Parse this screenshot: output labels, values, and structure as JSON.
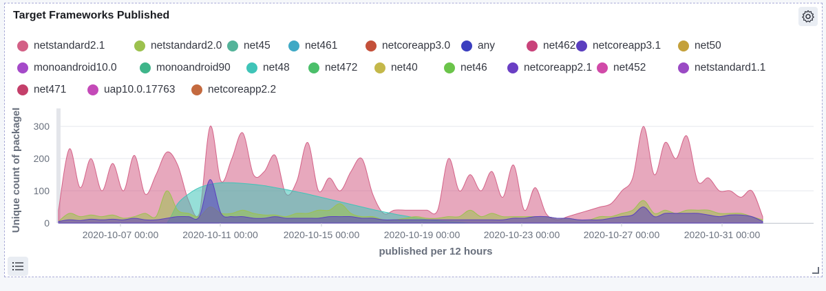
{
  "panel": {
    "title": "Target Frameworks Published"
  },
  "icons": {
    "settings": "gear-icon",
    "legend": "list-icon",
    "resize": "resize-handle-icon"
  },
  "legend": [
    {
      "name": "netstandard2.1",
      "color": "#d36086"
    },
    {
      "name": "netstandard2.0",
      "color": "#9cc14e"
    },
    {
      "name": "net45",
      "color": "#54b399"
    },
    {
      "name": "net461",
      "color": "#3fa9c5"
    },
    {
      "name": "netcoreapp3.0",
      "color": "#c4503a"
    },
    {
      "name": "any",
      "color": "#3b3fbf"
    },
    {
      "name": "net462",
      "color": "#c9437a"
    },
    {
      "name": "netcoreapp3.1",
      "color": "#5b3fbf"
    },
    {
      "name": "net50",
      "color": "#c4a03a"
    },
    {
      "name": "monoandroid10.0",
      "color": "#a54ac9"
    },
    {
      "name": "monoandroid90",
      "color": "#3fb58a"
    },
    {
      "name": "net48",
      "color": "#3fc4b8"
    },
    {
      "name": "net472",
      "color": "#4bbf6a"
    },
    {
      "name": "net40",
      "color": "#c4b84a"
    },
    {
      "name": "net46",
      "color": "#6bc44a"
    },
    {
      "name": "netcoreapp2.1",
      "color": "#6a3fc4"
    },
    {
      "name": "net452",
      "color": "#d14aa8"
    },
    {
      "name": "netstandard1.1",
      "color": "#9a4ac4"
    },
    {
      "name": "net471",
      "color": "#c43f6a"
    },
    {
      "name": "uap10.0.17763",
      "color": "#c44ab8"
    },
    {
      "name": "netcoreapp2.2",
      "color": "#c46a3f"
    }
  ],
  "chart_data": {
    "type": "area",
    "xlabel": "published per 12 hours",
    "ylabel": "Unique count of packageI",
    "ylim": [
      0,
      330
    ],
    "yticks": [
      0,
      100,
      200,
      300
    ],
    "xticks": [
      "2020-10-07 00:00",
      "2020-10-11 00:00",
      "2020-10-15 00:00",
      "2020-10-19 00:00",
      "2020-10-23 00:00",
      "2020-10-27 00:00",
      "2020-10-31 00:00"
    ],
    "x_start": "2020-10-04 12:00",
    "interval_hours": 12,
    "series": [
      {
        "name": "netstandard2.1",
        "color": "#d36086",
        "values": [
          40,
          230,
          110,
          200,
          100,
          185,
          100,
          210,
          90,
          150,
          220,
          180,
          70,
          30,
          300,
          130,
          200,
          280,
          150,
          160,
          210,
          90,
          130,
          250,
          100,
          140,
          100,
          160,
          200,
          90,
          30,
          40,
          40,
          40,
          40,
          40,
          200,
          100,
          150,
          100,
          160,
          80,
          180,
          40,
          110,
          30,
          10,
          20,
          30,
          40,
          50,
          60,
          100,
          140,
          300,
          150,
          250,
          200,
          270,
          130,
          140,
          100,
          100,
          80,
          100,
          20
        ]
      },
      {
        "name": "netstandard2.0",
        "color": "#9cc14e",
        "values": [
          5,
          30,
          20,
          25,
          20,
          25,
          15,
          20,
          30,
          20,
          100,
          40,
          30,
          20,
          50,
          30,
          30,
          40,
          30,
          25,
          25,
          20,
          30,
          30,
          40,
          40,
          60,
          30,
          20,
          20,
          10,
          10,
          15,
          20,
          15,
          15,
          20,
          20,
          40,
          20,
          30,
          20,
          20,
          20,
          20,
          20,
          15,
          15,
          10,
          10,
          20,
          20,
          30,
          40,
          70,
          30,
          40,
          30,
          40,
          40,
          40,
          30,
          30,
          30,
          20,
          10
        ]
      },
      {
        "name": "net48",
        "color": "#3fc4b8",
        "values": [
          0,
          0,
          0,
          0,
          0,
          0,
          0,
          0,
          0,
          0,
          0,
          60,
          90,
          110,
          120,
          125,
          125,
          123,
          120,
          116,
          110,
          104,
          97,
          90,
          82,
          74,
          66,
          58,
          50,
          42,
          35,
          28,
          22,
          16,
          11,
          7,
          4,
          2,
          0,
          0,
          0,
          0,
          0,
          0,
          0,
          0,
          0,
          0,
          0,
          0,
          0,
          0,
          0,
          0,
          0,
          0,
          0,
          0,
          0,
          0,
          0,
          0,
          0,
          0,
          0,
          0
        ]
      },
      {
        "name": "netcoreapp3.1",
        "color": "#5b3fbf",
        "values": [
          5,
          10,
          8,
          12,
          10,
          12,
          10,
          15,
          10,
          10,
          15,
          20,
          20,
          20,
          135,
          30,
          20,
          20,
          15,
          15,
          20,
          15,
          15,
          15,
          15,
          20,
          20,
          20,
          15,
          15,
          10,
          10,
          10,
          10,
          10,
          10,
          10,
          10,
          10,
          10,
          10,
          10,
          15,
          15,
          20,
          20,
          15,
          15,
          10,
          10,
          10,
          15,
          20,
          25,
          50,
          20,
          30,
          30,
          30,
          30,
          25,
          20,
          25,
          25,
          20,
          5
        ]
      }
    ]
  }
}
